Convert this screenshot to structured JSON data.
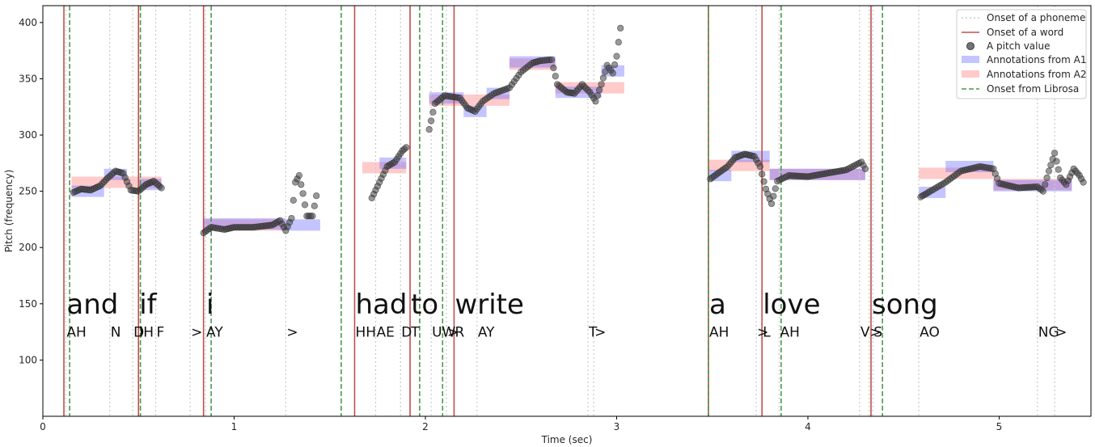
{
  "chart_data": {
    "type": "scatter",
    "title": "",
    "xlabel": "Time (sec)",
    "ylabel": "Pitch (frequency)",
    "xlim": [
      0,
      5.48
    ],
    "ylim": [
      50,
      415
    ],
    "x_ticks": [
      0,
      1,
      2,
      3,
      4,
      5
    ],
    "y_ticks": [
      100,
      150,
      200,
      250,
      300,
      350,
      400
    ],
    "legend": {
      "position": "top-right",
      "entries": [
        "Onset of a phoneme",
        "Onset of a word",
        "A pitch value",
        "Annotations from A1",
        "Annotations from A2",
        "Onset from Librosa"
      ]
    },
    "colors": {
      "phoneme_onset": "#c9c9c9",
      "word_onset": "#c0504d",
      "librosa_onset": "#4a9a4a",
      "pitch": "#222222",
      "a1": "#6b6bff",
      "a2": "#ff7b7b"
    },
    "words": [
      {
        "text": "and",
        "x": 0.12
      },
      {
        "text": "if",
        "x": 0.5
      },
      {
        "text": "i",
        "x": 0.85
      },
      {
        "text": "had",
        "x": 1.63
      },
      {
        "text": "to",
        "x": 1.92
      },
      {
        "text": "write",
        "x": 2.15
      },
      {
        "text": "a",
        "x": 3.48
      },
      {
        "text": "love",
        "x": 3.76
      },
      {
        "text": "song",
        "x": 4.33
      }
    ],
    "phonemes": [
      {
        "text": "AH",
        "x": 0.12
      },
      {
        "text": "N",
        "x": 0.35
      },
      {
        "text": "D",
        "x": 0.47
      },
      {
        "text": "IH",
        "x": 0.5
      },
      {
        "text": "F",
        "x": 0.59
      },
      {
        "text": ">",
        "x": 0.77
      },
      {
        "text": "AY",
        "x": 0.85
      },
      {
        "text": ">",
        "x": 1.27
      },
      {
        "text": "HH",
        "x": 1.63
      },
      {
        "text": "AE",
        "x": 1.74
      },
      {
        "text": "D",
        "x": 1.87
      },
      {
        "text": "T",
        "x": 1.92
      },
      {
        "text": "UW",
        "x": 2.03
      },
      {
        "text": ">",
        "x": 2.11
      },
      {
        "text": "R",
        "x": 2.15
      },
      {
        "text": "AY",
        "x": 2.27
      },
      {
        "text": "T",
        "x": 2.85
      },
      {
        "text": ">",
        "x": 2.88
      },
      {
        "text": "AH",
        "x": 3.48
      },
      {
        "text": ">",
        "x": 3.73
      },
      {
        "text": "L",
        "x": 3.76
      },
      {
        "text": "AH",
        "x": 3.85
      },
      {
        "text": "V",
        "x": 4.27
      },
      {
        "text": ">",
        "x": 4.32
      },
      {
        "text": "S",
        "x": 4.34
      },
      {
        "text": "AO",
        "x": 4.58
      },
      {
        "text": "NG",
        "x": 5.2
      },
      {
        "text": ">",
        "x": 5.29
      }
    ],
    "phoneme_onsets": [
      0.12,
      0.35,
      0.47,
      0.5,
      0.59,
      0.77,
      0.85,
      1.27,
      1.63,
      1.74,
      1.87,
      1.92,
      2.03,
      2.11,
      2.15,
      2.27,
      2.85,
      2.88,
      3.48,
      3.73,
      3.76,
      3.85,
      4.27,
      4.32,
      4.34,
      4.58,
      5.2,
      5.29
    ],
    "word_onsets": [
      0.11,
      0.5,
      0.84,
      1.63,
      1.92,
      2.15,
      3.48,
      3.76,
      4.33
    ],
    "librosa_onsets": [
      0.14,
      0.51,
      0.88,
      1.56,
      1.97,
      2.09,
      3.48,
      3.86,
      4.39
    ],
    "a1_annotations": [
      {
        "x0": 0.15,
        "x1": 0.32,
        "y": 250
      },
      {
        "x0": 0.32,
        "x1": 0.44,
        "y": 265
      },
      {
        "x0": 0.5,
        "x1": 0.62,
        "y": 256
      },
      {
        "x0": 0.84,
        "x1": 1.27,
        "y": 221
      },
      {
        "x0": 1.27,
        "x1": 1.45,
        "y": 220
      },
      {
        "x0": 1.76,
        "x1": 1.9,
        "y": 275
      },
      {
        "x0": 2.02,
        "x1": 2.2,
        "y": 333
      },
      {
        "x0": 2.2,
        "x1": 2.32,
        "y": 321
      },
      {
        "x0": 2.32,
        "x1": 2.44,
        "y": 337
      },
      {
        "x0": 2.44,
        "x1": 2.68,
        "y": 365
      },
      {
        "x0": 2.68,
        "x1": 2.92,
        "y": 338
      },
      {
        "x0": 2.92,
        "x1": 3.04,
        "y": 357
      },
      {
        "x0": 3.48,
        "x1": 3.6,
        "y": 264
      },
      {
        "x0": 3.6,
        "x1": 3.8,
        "y": 281
      },
      {
        "x0": 3.8,
        "x1": 4.3,
        "y": 265
      },
      {
        "x0": 4.58,
        "x1": 4.72,
        "y": 249
      },
      {
        "x0": 4.72,
        "x1": 4.97,
        "y": 272
      },
      {
        "x0": 4.97,
        "x1": 5.38,
        "y": 255
      }
    ],
    "a2_annotations": [
      {
        "x0": 0.15,
        "x1": 0.62,
        "y": 258
      },
      {
        "x0": 0.84,
        "x1": 1.27,
        "y": 220
      },
      {
        "x0": 1.67,
        "x1": 1.9,
        "y": 271
      },
      {
        "x0": 2.02,
        "x1": 2.44,
        "y": 331
      },
      {
        "x0": 2.44,
        "x1": 2.68,
        "y": 363
      },
      {
        "x0": 2.68,
        "x1": 3.04,
        "y": 342
      },
      {
        "x0": 3.48,
        "x1": 3.8,
        "y": 273
      },
      {
        "x0": 3.8,
        "x1": 4.3,
        "y": 265
      },
      {
        "x0": 4.58,
        "x1": 4.97,
        "y": 266
      },
      {
        "x0": 4.97,
        "x1": 5.38,
        "y": 256
      }
    ],
    "pitch_segments": [
      [
        [
          0.16,
          249
        ],
        [
          0.2,
          252
        ],
        [
          0.25,
          251
        ],
        [
          0.3,
          255
        ],
        [
          0.34,
          262
        ],
        [
          0.38,
          268
        ],
        [
          0.42,
          266
        ],
        [
          0.46,
          251
        ],
        [
          0.5,
          250
        ],
        [
          0.54,
          256
        ],
        [
          0.58,
          259
        ],
        [
          0.62,
          253
        ]
      ],
      [
        [
          0.84,
          213
        ],
        [
          0.88,
          218
        ],
        [
          0.95,
          216
        ],
        [
          1.0,
          218
        ],
        [
          1.1,
          218
        ],
        [
          1.2,
          220
        ],
        [
          1.24,
          224
        ],
        [
          1.27,
          215
        ],
        [
          1.3,
          226
        ],
        [
          1.32,
          258
        ],
        [
          1.34,
          264
        ],
        [
          1.36,
          248
        ],
        [
          1.38,
          228
        ],
        [
          1.41,
          228
        ],
        [
          1.43,
          246
        ]
      ],
      [
        [
          1.72,
          244
        ],
        [
          1.76,
          258
        ],
        [
          1.8,
          272
        ],
        [
          1.84,
          276
        ],
        [
          1.88,
          286
        ],
        [
          1.9,
          289
        ]
      ],
      [
        [
          2.02,
          305
        ],
        [
          2.05,
          328
        ],
        [
          2.1,
          335
        ],
        [
          2.18,
          333
        ],
        [
          2.22,
          324
        ],
        [
          2.26,
          321
        ],
        [
          2.3,
          330
        ],
        [
          2.36,
          337
        ],
        [
          2.44,
          342
        ],
        [
          2.5,
          356
        ],
        [
          2.56,
          364
        ],
        [
          2.6,
          366
        ],
        [
          2.66,
          367
        ],
        [
          2.69,
          345
        ],
        [
          2.74,
          338
        ],
        [
          2.78,
          337
        ],
        [
          2.82,
          345
        ],
        [
          2.86,
          338
        ],
        [
          2.89,
          330
        ],
        [
          2.92,
          345
        ],
        [
          2.95,
          362
        ],
        [
          2.98,
          355
        ],
        [
          3.0,
          370
        ],
        [
          3.02,
          395
        ]
      ],
      [
        [
          3.49,
          261
        ],
        [
          3.53,
          266
        ],
        [
          3.58,
          272
        ],
        [
          3.62,
          280
        ],
        [
          3.67,
          283
        ],
        [
          3.72,
          281
        ],
        [
          3.75,
          272
        ],
        [
          3.78,
          252
        ],
        [
          3.81,
          239
        ],
        [
          3.84,
          259
        ],
        [
          3.9,
          264
        ],
        [
          4.0,
          263
        ],
        [
          4.1,
          266
        ],
        [
          4.2,
          269
        ],
        [
          4.28,
          276
        ],
        [
          4.3,
          270
        ]
      ],
      [
        [
          4.59,
          245
        ],
        [
          4.64,
          250
        ],
        [
          4.72,
          258
        ],
        [
          4.8,
          268
        ],
        [
          4.9,
          272
        ],
        [
          4.97,
          270
        ],
        [
          5.0,
          257
        ],
        [
          5.1,
          253
        ],
        [
          5.2,
          254
        ],
        [
          5.23,
          250
        ],
        [
          5.26,
          268
        ],
        [
          5.29,
          284
        ],
        [
          5.32,
          262
        ],
        [
          5.35,
          256
        ],
        [
          5.39,
          270
        ],
        [
          5.42,
          264
        ],
        [
          5.44,
          258
        ]
      ]
    ]
  }
}
